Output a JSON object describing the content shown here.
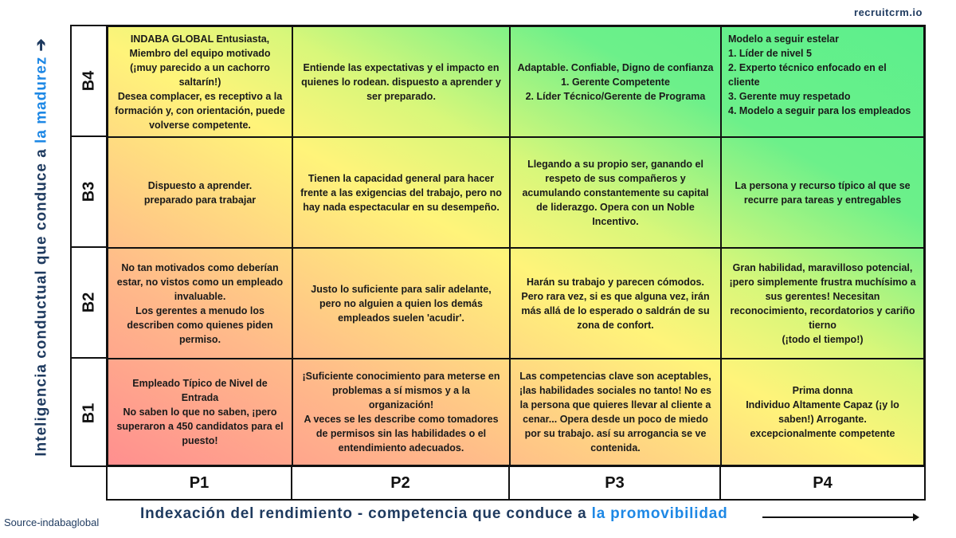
{
  "brand": "recruitcrm.io",
  "source": "Source-indabaglobal",
  "y_axis": {
    "text": "Inteligencia conductual que conduce a ",
    "highlight": "la madurez"
  },
  "x_axis": {
    "text": "Indexación del rendimiento - competencia que conduce a ",
    "highlight": "la promovibilidad"
  },
  "colors": {
    "axis_text": "#1e3a5f",
    "highlight": "#1e88e5",
    "high": "#5cef8c",
    "mid": "#fff47a",
    "low": "#ff8f8f"
  },
  "rows": [
    "B4",
    "B3",
    "B2",
    "B1"
  ],
  "columns": [
    "P1",
    "P2",
    "P3",
    "P4"
  ],
  "cells": {
    "B4": [
      "INDABA GLOBAL Entusiasta, Miembro del equipo motivado (¡muy parecido a un cachorro saltarín!)\nDesea complacer, es receptivo a la formación y, con orientación, puede volverse competente.",
      "Entiende las expectativas y el impacto en quienes lo rodean. dispuesto a aprender y ser preparado.",
      "Adaptable. Confiable, Digno de confianza\n1. Gerente Competente\n2. Líder Técnico/Gerente de Programa",
      "Modelo a seguir estelar\n1. Líder de nivel 5\n2. Experto técnico enfocado en el cliente\n3. Gerente muy respetado\n4. Modelo a seguir para los empleados"
    ],
    "B3": [
      "Dispuesto a aprender.\npreparado para trabajar",
      "Tienen la capacidad general para hacer frente a las exigencias del trabajo, pero no hay nada espectacular en su desempeño.",
      "Llegando a su propio ser, ganando el respeto de sus compañeros y acumulando constantemente su capital de liderazgo. Opera con un Noble Incentivo.",
      "La persona y recurso típico al que se recurre para tareas y entregables"
    ],
    "B2": [
      "No tan motivados como deberían estar, no vistos como un empleado invaluable.\nLos gerentes a menudo los describen como quienes piden permiso.",
      "Justo lo suficiente para salir adelante, pero no alguien a quien los demás empleados suelen 'acudir'.",
      "Harán su trabajo y parecen cómodos. Pero rara vez, si es que alguna vez, irán más allá de lo esperado o saldrán de su zona de confort.",
      "Gran habilidad, maravilloso potencial, ¡pero simplemente frustra muchísimo a sus gerentes! Necesitan reconocimiento, recordatorios y cariño tierno\n(¡todo el tiempo!)"
    ],
    "B1": [
      "Empleado Típico de Nivel de Entrada\nNo saben lo que no saben, ¡pero superaron a 450 candidatos para el puesto!",
      "¡Suficiente conocimiento para meterse en problemas a sí mismos y a la organización!\nA veces se les describe como tomadores de permisos sin las habilidades o el entendimiento adecuados.",
      "Las competencias clave son aceptables, ¡las habilidades sociales no tanto! No es la persona que quieres llevar al cliente a cenar... Opera desde un poco de miedo por su trabajo. así su arrogancia se ve contenida.",
      "Prima donna\nIndividuo Altamente Capaz (¡y lo saben!) Arrogante.\nexcepcionalmente competente"
    ]
  }
}
